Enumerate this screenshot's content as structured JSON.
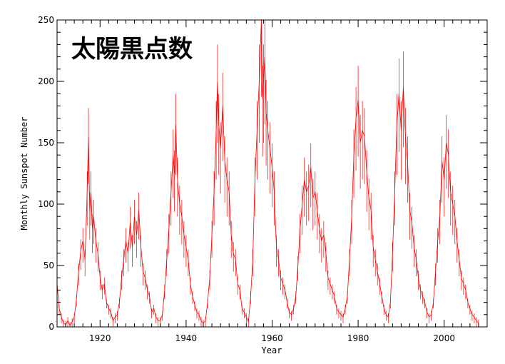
{
  "chart_data": {
    "type": "line",
    "title": "太陽黒点数",
    "xlabel": "Year",
    "ylabel": "Monthly Sunspot Number",
    "xlim": [
      1910,
      2010
    ],
    "ylim": [
      0,
      250
    ],
    "x_ticks": [
      1920,
      1940,
      1960,
      1980,
      2000
    ],
    "y_ticks": [
      0,
      50,
      100,
      150,
      200,
      250
    ],
    "grid": false,
    "line_color": "#ff0000",
    "series": [
      {
        "x": [
          1910.0,
          1910.5,
          1911.0,
          1911.5,
          1912.0,
          1912.5,
          1913.0,
          1913.5,
          1914.0,
          1914.5,
          1915.0,
          1915.5,
          1916.0,
          1916.5,
          1917.0,
          1917.3,
          1917.6,
          1917.9,
          1918.2,
          1918.5,
          1919.0,
          1919.5,
          1920.0,
          1920.5,
          1921.0,
          1921.5,
          1922.0,
          1922.5,
          1923.0,
          1923.5,
          1924.0,
          1924.5,
          1925.0,
          1925.5,
          1926.0,
          1926.5,
          1927.0,
          1927.5,
          1928.0,
          1928.5,
          1929.0,
          1929.5,
          1930.0,
          1930.5,
          1931.0,
          1931.5,
          1932.0,
          1932.5,
          1933.0,
          1933.5,
          1934.0,
          1934.5,
          1935.0,
          1935.5,
          1936.0,
          1936.5,
          1937.0,
          1937.3,
          1937.6,
          1938.0,
          1938.5,
          1939.0,
          1939.5,
          1940.0,
          1940.5,
          1941.0,
          1941.5,
          1942.0,
          1942.5,
          1943.0,
          1943.5,
          1944.0,
          1944.5,
          1945.0,
          1945.5,
          1946.0,
          1946.5,
          1947.0,
          1947.3,
          1947.6,
          1948.0,
          1948.5,
          1949.0,
          1949.5,
          1950.0,
          1950.5,
          1951.0,
          1951.5,
          1952.0,
          1952.5,
          1953.0,
          1953.5,
          1954.0,
          1954.5,
          1955.0,
          1955.5,
          1956.0,
          1956.5,
          1957.0,
          1957.5,
          1957.8,
          1958.0,
          1958.3,
          1958.6,
          1959.0,
          1959.5,
          1960.0,
          1960.5,
          1961.0,
          1961.5,
          1962.0,
          1962.5,
          1963.0,
          1963.5,
          1964.0,
          1964.5,
          1965.0,
          1965.5,
          1966.0,
          1966.5,
          1967.0,
          1967.5,
          1968.0,
          1968.5,
          1969.0,
          1969.5,
          1970.0,
          1970.5,
          1971.0,
          1971.5,
          1972.0,
          1972.5,
          1973.0,
          1973.5,
          1974.0,
          1974.5,
          1975.0,
          1975.5,
          1976.0,
          1976.5,
          1977.0,
          1977.5,
          1978.0,
          1978.5,
          1979.0,
          1979.5,
          1980.0,
          1980.5,
          1981.0,
          1981.5,
          1982.0,
          1982.5,
          1983.0,
          1983.5,
          1984.0,
          1984.5,
          1985.0,
          1985.5,
          1986.0,
          1986.5,
          1987.0,
          1987.5,
          1988.0,
          1988.5,
          1989.0,
          1989.5,
          1990.0,
          1990.5,
          1991.0,
          1991.5,
          1992.0,
          1992.5,
          1993.0,
          1993.5,
          1994.0,
          1994.5,
          1995.0,
          1995.5,
          1996.0,
          1996.5,
          1997.0,
          1997.5,
          1998.0,
          1998.5,
          1999.0,
          1999.5,
          2000.0,
          2000.5,
          2001.0,
          2001.5,
          2002.0,
          2002.5,
          2003.0,
          2003.5,
          2004.0,
          2004.5,
          2005.0,
          2005.5,
          2006.0,
          2006.5,
          2007.0,
          2007.5,
          2008.0
        ],
        "values": [
          35,
          15,
          8,
          3,
          2,
          5,
          1,
          4,
          8,
          22,
          45,
          62,
          70,
          55,
          110,
          155,
          95,
          110,
          80,
          90,
          70,
          60,
          40,
          30,
          35,
          20,
          15,
          12,
          5,
          8,
          10,
          20,
          40,
          55,
          70,
          60,
          85,
          65,
          90,
          75,
          95,
          65,
          45,
          40,
          30,
          25,
          12,
          15,
          8,
          5,
          5,
          10,
          30,
          55,
          80,
          110,
          140,
          125,
          165,
          120,
          100,
          90,
          75,
          65,
          55,
          35,
          25,
          18,
          12,
          10,
          5,
          3,
          5,
          20,
          40,
          75,
          110,
          160,
          200,
          165,
          145,
          180,
          135,
          120,
          110,
          75,
          60,
          55,
          35,
          30,
          15,
          12,
          8,
          4,
          25,
          55,
          120,
          160,
          200,
          250,
          185,
          200,
          220,
          175,
          160,
          145,
          130,
          110,
          65,
          55,
          40,
          35,
          30,
          20,
          12,
          10,
          15,
          25,
          50,
          80,
          100,
          120,
          110,
          115,
          130,
          105,
          110,
          95,
          80,
          70,
          75,
          60,
          40,
          35,
          30,
          25,
          15,
          12,
          10,
          8,
          15,
          25,
          55,
          90,
          140,
          170,
          185,
          150,
          160,
          155,
          125,
          105,
          95,
          65,
          55,
          45,
          35,
          25,
          15,
          10,
          8,
          20,
          60,
          110,
          165,
          190,
          160,
          195,
          155,
          135,
          95,
          85,
          65,
          55,
          40,
          30,
          25,
          20,
          12,
          8,
          10,
          20,
          45,
          70,
          90,
          135,
          120,
          150,
          140,
          110,
          100,
          90,
          70,
          55,
          40,
          35,
          30,
          20,
          15,
          10,
          8,
          5,
          3
        ]
      }
    ]
  }
}
